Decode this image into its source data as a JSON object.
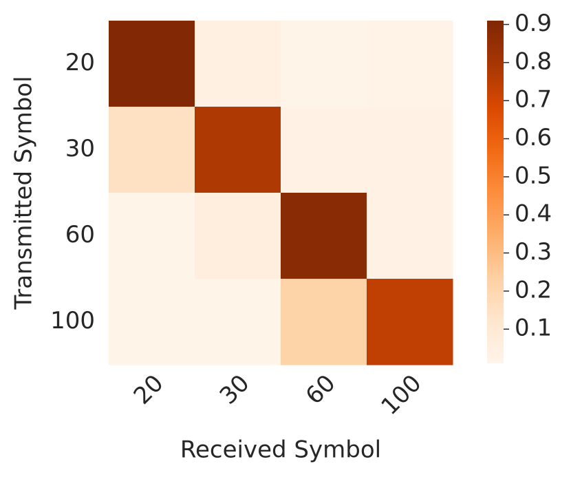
{
  "chart_data": {
    "type": "heatmap",
    "xlabel": "Received Symbol",
    "ylabel": "Transmitted Symbol",
    "categories": [
      "20",
      "30",
      "60",
      "100"
    ],
    "y_categories": [
      "20",
      "30",
      "60",
      "100"
    ],
    "values": [
      [
        0.9,
        0.05,
        0.02,
        0.03
      ],
      [
        0.15,
        0.78,
        0.04,
        0.04
      ],
      [
        0.02,
        0.06,
        0.88,
        0.04
      ],
      [
        0.02,
        0.02,
        0.22,
        0.74
      ]
    ],
    "colors": [
      "#fff5eb",
      "#fee6ce",
      "#fdd0a2",
      "#fdae6b",
      "#fd8d3c",
      "#f16913",
      "#d94801",
      "#a63603",
      "#7f2704"
    ],
    "zlim": [
      0.01,
      0.91
    ],
    "zticks": [
      0.1,
      0.2,
      0.3,
      0.4,
      0.5,
      0.6,
      0.7,
      0.8,
      0.9
    ]
  }
}
